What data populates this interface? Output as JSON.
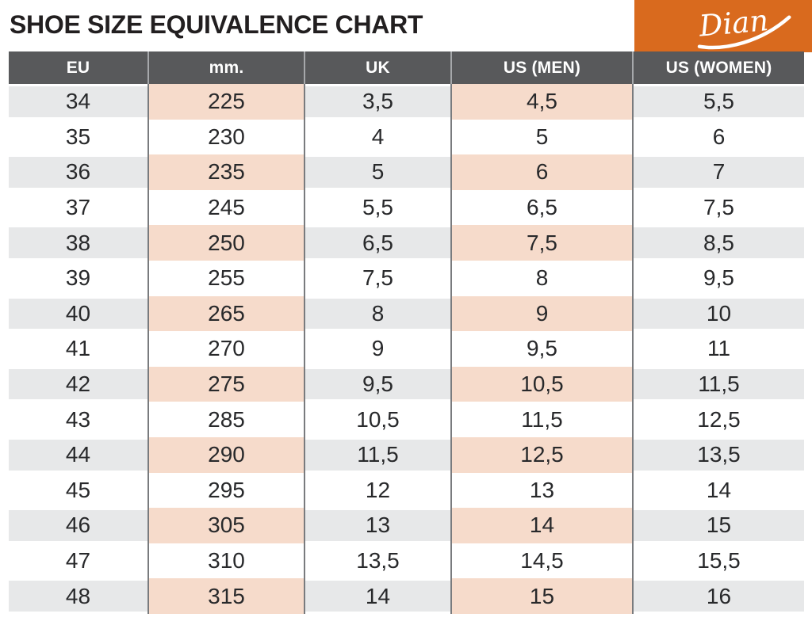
{
  "title": "SHOE SIZE EQUIVALENCE CHART",
  "logo": {
    "brand": "Dian",
    "background_color": "#d96a1e",
    "text_color": "#ffffff"
  },
  "colors": {
    "header_background": "#58595b",
    "header_text": "#ffffff",
    "stripe_gray": "#e7e8e9",
    "stripe_pink": "#f6dbcb",
    "divider_body": "#797b7e",
    "divider_header": "#a6a8ab",
    "title_text": "#221f20",
    "cell_text": "#28292b",
    "brand_orange": "#d96a1e"
  },
  "chart_data": {
    "type": "table",
    "title": "SHOE SIZE EQUIVALENCE CHART",
    "columns": [
      "EU",
      "mm.",
      "UK",
      "US (MEN)",
      "US (WOMEN)"
    ],
    "rows": [
      [
        "34",
        "225",
        "3,5",
        "4,5",
        "5,5"
      ],
      [
        "35",
        "230",
        "4",
        "5",
        "6"
      ],
      [
        "36",
        "235",
        "5",
        "6",
        "7"
      ],
      [
        "37",
        "245",
        "5,5",
        "6,5",
        "7,5"
      ],
      [
        "38",
        "250",
        "6,5",
        "7,5",
        "8,5"
      ],
      [
        "39",
        "255",
        "7,5",
        "8",
        "9,5"
      ],
      [
        "40",
        "265",
        "8",
        "9",
        "10"
      ],
      [
        "41",
        "270",
        "9",
        "9,5",
        "11"
      ],
      [
        "42",
        "275",
        "9,5",
        "10,5",
        "11,5"
      ],
      [
        "43",
        "285",
        "10,5",
        "11,5",
        "12,5"
      ],
      [
        "44",
        "290",
        "11,5",
        "12,5",
        "13,5"
      ],
      [
        "45",
        "295",
        "12",
        "13",
        "14"
      ],
      [
        "46",
        "305",
        "13",
        "14",
        "15"
      ],
      [
        "47",
        "310",
        "13,5",
        "14,5",
        "15,5"
      ],
      [
        "48",
        "315",
        "14",
        "15",
        "16"
      ]
    ],
    "highlighted_columns": [
      "mm.",
      "US (MEN)"
    ],
    "striping": "odd data rows shaded: gray for EU/UK/US (WOMEN), pink for mm./US (MEN)"
  }
}
